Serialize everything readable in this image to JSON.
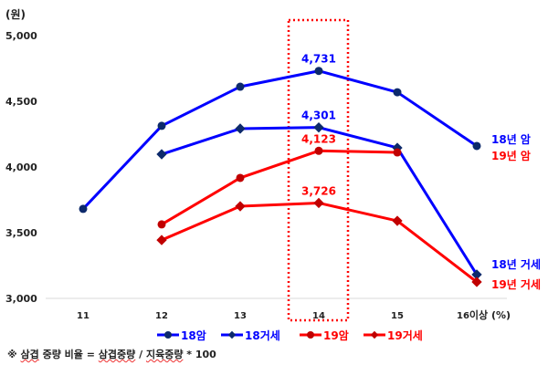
{
  "chart_data": {
    "type": "line",
    "title": "",
    "ylabel": "(원)",
    "xlabel": "(%)",
    "ylim": [
      3000,
      5000
    ],
    "yticks": [
      3000,
      3500,
      4000,
      4500,
      5000
    ],
    "ytick_labels": [
      "3,000",
      "3,500",
      "4,000",
      "4,500",
      "5,000"
    ],
    "categories": [
      "11",
      "12",
      "13",
      "14",
      "15",
      "16이상"
    ],
    "grid": false,
    "legend_position": "bottom",
    "series": [
      {
        "name": "18암",
        "color": "#0000ff",
        "marker": "circle",
        "marker_color": "#0d2a6b",
        "values": [
          3681,
          4313,
          4611,
          4731,
          4569,
          4160
        ],
        "end_label": "18년 암",
        "end_label_color": "#0000ff"
      },
      {
        "name": "18거세",
        "color": "#0000ff",
        "marker": "diamond",
        "marker_color": "#0d2a6b",
        "values": [
          null,
          4097,
          4292,
          4301,
          4146,
          3181
        ],
        "end_label": "18년 거세",
        "end_label_color": "#0000ff"
      },
      {
        "name": "19암",
        "color": "#ff0000",
        "marker": "circle",
        "marker_color": "#c00000",
        "values": [
          null,
          3563,
          3917,
          4123,
          4111,
          null
        ],
        "end_label": "19년 암",
        "end_label_color": "#ff0000"
      },
      {
        "name": "19거세",
        "color": "#ff0000",
        "marker": "diamond",
        "marker_color": "#c00000",
        "values": [
          null,
          3444,
          3701,
          3726,
          3590,
          3125
        ],
        "end_label": "19년 거세",
        "end_label_color": "#ff0000"
      }
    ],
    "annotations": [
      {
        "category": "14",
        "series": "18암",
        "text": "4,731",
        "color": "#0000ff"
      },
      {
        "category": "14",
        "series": "18거세",
        "text": "4,301",
        "color": "#0000ff"
      },
      {
        "category": "14",
        "series": "19암",
        "text": "4,123",
        "color": "#ff0000"
      },
      {
        "category": "14",
        "series": "19거세",
        "text": "3,726",
        "color": "#ff0000"
      }
    ],
    "highlight_box": {
      "category": "14",
      "style": "dotted",
      "color": "#ff0000"
    }
  },
  "footnote": {
    "prefix": "※ ",
    "w1": "삼겹",
    "mid": " 중량 비율 = ",
    "w2": "삼겹중량",
    "sep": " / ",
    "w3": "지육중량",
    "suffix": " * 100"
  }
}
